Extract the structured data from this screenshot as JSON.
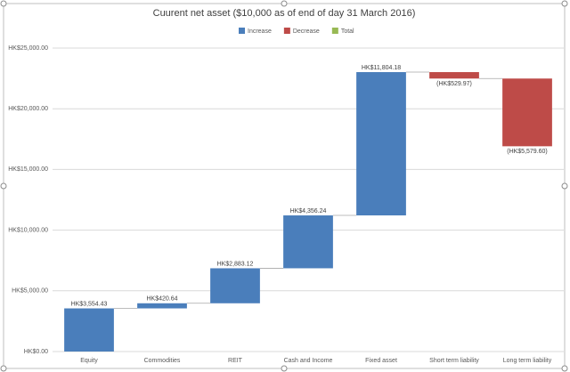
{
  "chart_data": {
    "type": "waterfall",
    "title": "Cuurent net asset  ($10,000 as of end of day 31 March 2016)",
    "categories": [
      "Equity",
      "Commodities",
      "REIT",
      "Cash and Income",
      "Fixed asset",
      "Short term liability",
      "Long term liability"
    ],
    "series": [
      {
        "name": "Increase",
        "color": "#4a7ebb",
        "values": [
          3554.43,
          420.64,
          2883.12,
          4356.24,
          11804.18,
          null,
          null
        ],
        "value_labels": [
          "HK$3,554.43",
          "HK$420.64",
          "HK$2,883.12",
          "HK$4,356.24",
          "HK$11,804.18",
          null,
          null
        ]
      },
      {
        "name": "Decrease",
        "color": "#be4b48",
        "values": [
          null,
          null,
          null,
          null,
          null,
          -529.97,
          -5579.6
        ],
        "value_labels": [
          null,
          null,
          null,
          null,
          null,
          "(HK$529.97)",
          "(HK$5,579.60)"
        ]
      },
      {
        "name": "Total",
        "color": "#98b954",
        "values": [
          null,
          null,
          null,
          null,
          null,
          null,
          null
        ],
        "value_labels": [
          null,
          null,
          null,
          null,
          null,
          null,
          null
        ]
      }
    ],
    "ylim": [
      0,
      25000
    ],
    "yticks": [
      {
        "value": 0,
        "label": "HK$0.00"
      },
      {
        "value": 5000,
        "label": "HK$5,000.00"
      },
      {
        "value": 10000,
        "label": "HK$10,000.00"
      },
      {
        "value": 15000,
        "label": "HK$15,000.00"
      },
      {
        "value": 20000,
        "label": "HK$20,000.00"
      },
      {
        "value": 25000,
        "label": "HK$25,000.00"
      }
    ],
    "grid": true,
    "legend": "top"
  }
}
